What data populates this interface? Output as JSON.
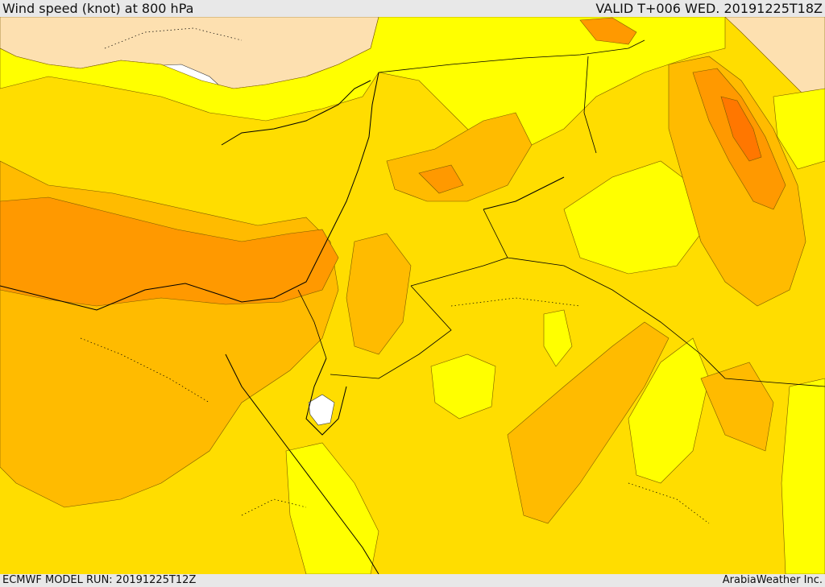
{
  "header": {
    "title": "Wind speed (knot) at 800 hPa",
    "valid_time": "VALID T+006 WED. 20191225T18Z"
  },
  "footer": {
    "model_run": "ECMWF MODEL RUN: 20191225T12Z",
    "credit": "ArabiaWeather Inc."
  },
  "colors": {
    "calm_white": "#ffffff",
    "very_light_peach": "#fde0b0",
    "light_yellow": "#ffff00",
    "gold": "#ffdd00",
    "amber": "#ffbb00",
    "orange": "#ff9900",
    "dark_orange": "#ff7700",
    "border_line": "#000000"
  }
}
